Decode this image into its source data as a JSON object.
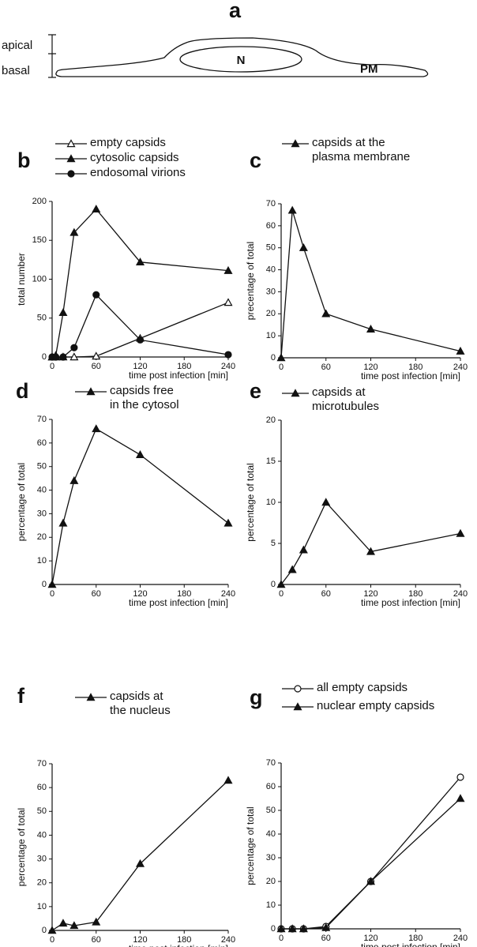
{
  "diagram": {
    "label": "a",
    "apical": "apical",
    "basal": "basal",
    "nucleus": "N",
    "membrane": "PM"
  },
  "chart_data": [
    {
      "type": "line",
      "label": "b",
      "ylabel": "total number",
      "xlabel": "time post infection [min]",
      "x": [
        0,
        5,
        15,
        30,
        60,
        120,
        240
      ],
      "xlim": [
        0,
        240
      ],
      "xticks": [
        0,
        60,
        120,
        180,
        240
      ],
      "ylim": [
        0,
        200
      ],
      "yticks": [
        0,
        50,
        100,
        150,
        200
      ],
      "series": [
        {
          "name": "empty capsids",
          "marker": "triangle-open",
          "color": "#111111",
          "values": [
            0,
            0,
            0,
            0,
            1,
            24,
            70
          ]
        },
        {
          "name": "cytosolic capsids",
          "marker": "triangle",
          "color": "#111111",
          "values": [
            0,
            2,
            57,
            160,
            190,
            122,
            111
          ]
        },
        {
          "name": "endosomal virions",
          "marker": "circle",
          "color": "#111111",
          "values": [
            0,
            0,
            0,
            12,
            80,
            22,
            3
          ]
        }
      ]
    },
    {
      "type": "line",
      "label": "c",
      "ylabel": "precentage of total",
      "xlabel": "time post infection [min]",
      "x": [
        0,
        15,
        30,
        60,
        120,
        240
      ],
      "xlim": [
        0,
        240
      ],
      "xticks": [
        0,
        60,
        120,
        180,
        240
      ],
      "ylim": [
        0,
        70
      ],
      "yticks": [
        0,
        10,
        20,
        30,
        40,
        50,
        60,
        70
      ],
      "series": [
        {
          "name": "capsids at the\nplasma membrane",
          "marker": "triangle",
          "color": "#111111",
          "values": [
            0,
            67,
            50,
            20,
            13,
            3
          ]
        }
      ]
    },
    {
      "type": "line",
      "label": "d",
      "ylabel": "percentage of total",
      "xlabel": "time post infection [min]",
      "x": [
        0,
        15,
        30,
        60,
        120,
        240
      ],
      "xlim": [
        0,
        240
      ],
      "xticks": [
        0,
        60,
        120,
        180,
        240
      ],
      "ylim": [
        0,
        70
      ],
      "yticks": [
        0,
        10,
        20,
        30,
        40,
        50,
        60,
        70
      ],
      "series": [
        {
          "name": "capsids free\nin the cytosol",
          "marker": "triangle",
          "color": "#111111",
          "values": [
            0,
            26,
            44,
            66,
            55,
            26
          ]
        }
      ]
    },
    {
      "type": "line",
      "label": "e",
      "ylabel": "percentage of total",
      "xlabel": "time post infection [min]",
      "x": [
        0,
        15,
        30,
        60,
        120,
        240
      ],
      "xlim": [
        0,
        240
      ],
      "xticks": [
        0,
        60,
        120,
        180,
        240
      ],
      "ylim": [
        0,
        20
      ],
      "yticks": [
        0,
        5,
        10,
        15,
        20
      ],
      "series": [
        {
          "name": "capsids at\nmicrotubules",
          "marker": "triangle",
          "color": "#111111",
          "values": [
            0,
            1.8,
            4.2,
            10,
            4,
            6.2
          ]
        }
      ]
    },
    {
      "type": "line",
      "label": "f",
      "ylabel": "percentage of total",
      "xlabel": "time post infection [min]",
      "x": [
        0,
        15,
        30,
        60,
        120,
        240
      ],
      "xlim": [
        0,
        240
      ],
      "xticks": [
        0,
        60,
        120,
        180,
        240
      ],
      "ylim": [
        0,
        70
      ],
      "yticks": [
        0,
        10,
        20,
        30,
        40,
        50,
        60,
        70
      ],
      "series": [
        {
          "name": "capsids at\nthe nucleus",
          "marker": "triangle",
          "color": "#111111",
          "values": [
            0,
            3,
            2,
            3.5,
            28,
            63
          ]
        }
      ]
    },
    {
      "type": "line",
      "label": "g",
      "ylabel": "percentage of total",
      "xlabel": "time post infection [min]",
      "x": [
        0,
        15,
        30,
        60,
        120,
        240
      ],
      "xlim": [
        0,
        240
      ],
      "xticks": [
        0,
        60,
        120,
        180,
        240
      ],
      "ylim": [
        0,
        70
      ],
      "yticks": [
        0,
        10,
        20,
        30,
        40,
        50,
        60,
        70
      ],
      "series": [
        {
          "name": "all empty capsids",
          "marker": "circle-open",
          "color": "#111111",
          "values": [
            0,
            0,
            0,
            1,
            20,
            64
          ]
        },
        {
          "name": "nuclear empty capsids",
          "marker": "triangle",
          "color": "#111111",
          "values": [
            0,
            0,
            0,
            0.5,
            20,
            55
          ]
        }
      ]
    }
  ]
}
